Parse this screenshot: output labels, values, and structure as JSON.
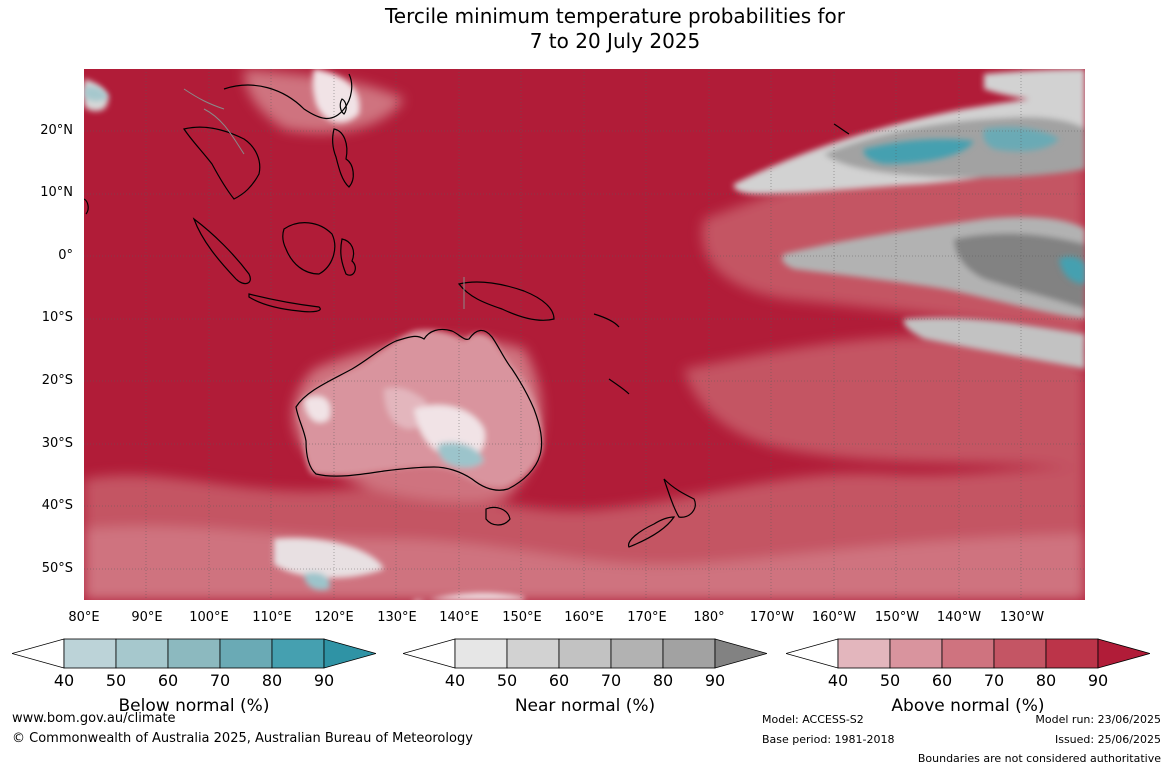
{
  "title_line1": "Tercile minimum temperature probabilities for",
  "title_line2": "7 to 20 July 2025",
  "lat_labels": [
    "20°N",
    "10°N",
    "0°",
    "10°S",
    "20°S",
    "30°S",
    "40°S",
    "50°S"
  ],
  "lon_labels": [
    "80°E",
    "90°E",
    "100°E",
    "110°E",
    "120°E",
    "130°E",
    "140°E",
    "150°E",
    "160°E",
    "170°E",
    "180°",
    "170°W",
    "160°W",
    "150°W",
    "140°W",
    "130°W"
  ],
  "legends": [
    {
      "name": "Below normal (%)",
      "ticks": [
        "40",
        "50",
        "60",
        "70",
        "80",
        "90"
      ],
      "colors": [
        "#ffffff",
        "#bcd3d8",
        "#a6c8cd",
        "#8cb9bf",
        "#6aaab5",
        "#45a0b0",
        "#2f93a5"
      ]
    },
    {
      "name": "Near normal (%)",
      "ticks": [
        "40",
        "50",
        "60",
        "70",
        "80",
        "90"
      ],
      "colors": [
        "#ffffff",
        "#e6e6e6",
        "#d2d2d2",
        "#c2c2c2",
        "#b2b2b2",
        "#a2a2a2",
        "#828282"
      ]
    },
    {
      "name": "Above normal (%)",
      "ticks": [
        "40",
        "50",
        "60",
        "70",
        "80",
        "90"
      ],
      "colors": [
        "#ffffff",
        "#e3b6bd",
        "#d9949e",
        "#cf737f",
        "#c45564",
        "#bc3449",
        "#b11c38"
      ]
    }
  ],
  "footer": {
    "website": "www.bom.gov.au/climate",
    "copyright": "© Commonwealth of Australia 2025, Australian Bureau of Meteorology",
    "model": "Model: ACCESS-S2",
    "base_period": "Base period: 1981-2018",
    "model_run": "Model run: 23/06/2025",
    "issued": "Issued: 25/06/2025",
    "disclaimer": "Boundaries are not considered authoritative"
  },
  "colors": {
    "above_90": "#b11c38",
    "above_80": "#bc3449",
    "above_70": "#c45564",
    "above_60": "#cf737f",
    "above_50": "#d9949e",
    "near": "#a2a2a2",
    "below": "#45a0b0"
  }
}
